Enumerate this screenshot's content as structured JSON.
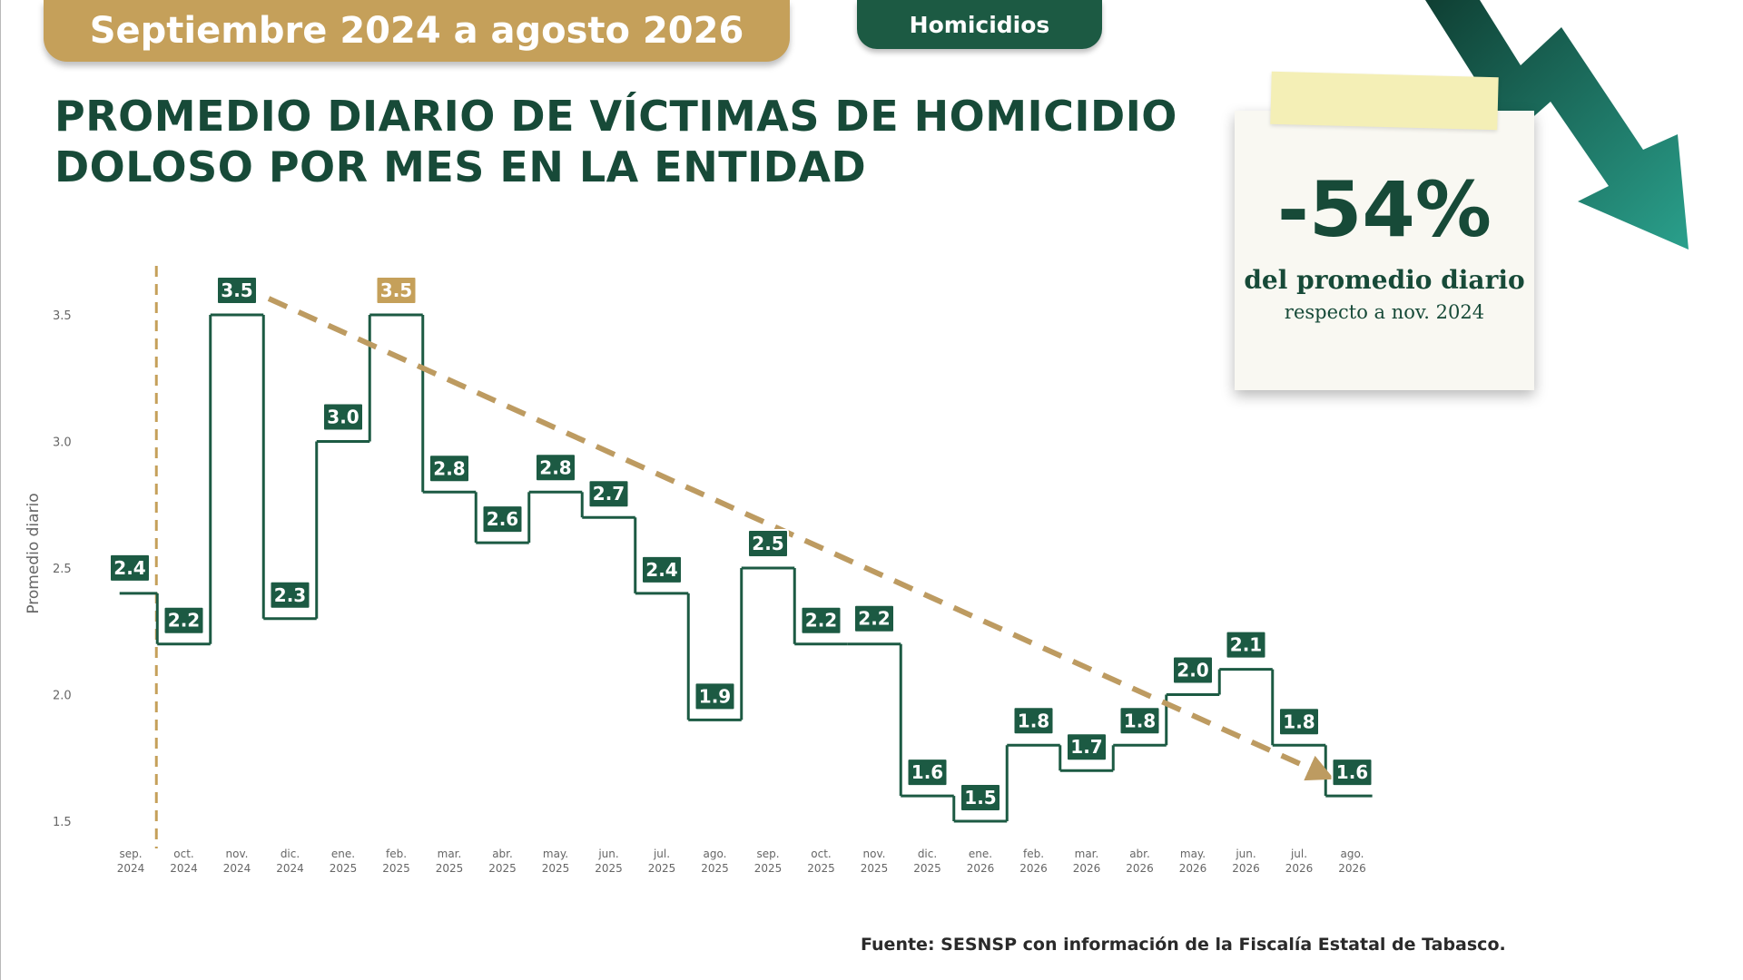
{
  "header": {
    "period": "Septiembre 2024 a agosto 2026",
    "section": "Homicidios"
  },
  "title": {
    "line1": "PROMEDIO DIARIO DE VÍCTIMAS DE HOMICIDIO",
    "line2": "DOLOSO POR MES EN LA ENTIDAD"
  },
  "note": {
    "big": "-54%",
    "line1": "del promedio diario",
    "line2": "respecto a nov. 2024"
  },
  "source": "Fuente: SESNSP con información de la Fiscalía Estatal de Tabasco.",
  "colors": {
    "line": "#1c5a43",
    "label_bg": "#1c5a43",
    "highlight": "#c5a05a",
    "trend": "#bd9b61",
    "axis_text": "#666666"
  },
  "chart_data": {
    "type": "line",
    "step": true,
    "ylabel": "Promedio diario",
    "xlabel": "",
    "ylim": [
      1.5,
      3.5
    ],
    "yticks": [
      "1.5",
      "2.0",
      "2.5",
      "3.0",
      "3.5"
    ],
    "categories": [
      [
        "sep.",
        "2024"
      ],
      [
        "oct.",
        "2024"
      ],
      [
        "nov.",
        "2024"
      ],
      [
        "dic.",
        "2024"
      ],
      [
        "ene.",
        "2025"
      ],
      [
        "feb.",
        "2025"
      ],
      [
        "mar.",
        "2025"
      ],
      [
        "abr.",
        "2025"
      ],
      [
        "may.",
        "2025"
      ],
      [
        "jun.",
        "2025"
      ],
      [
        "jul.",
        "2025"
      ],
      [
        "ago.",
        "2025"
      ],
      [
        "sep.",
        "2025"
      ],
      [
        "oct.",
        "2025"
      ],
      [
        "nov.",
        "2025"
      ],
      [
        "dic.",
        "2025"
      ],
      [
        "ene.",
        "2026"
      ],
      [
        "feb.",
        "2026"
      ],
      [
        "mar.",
        "2026"
      ],
      [
        "abr.",
        "2026"
      ],
      [
        "may.",
        "2026"
      ],
      [
        "jun.",
        "2026"
      ],
      [
        "jul.",
        "2026"
      ],
      [
        "ago.",
        "2026"
      ]
    ],
    "values": [
      2.4,
      2.2,
      3.5,
      2.3,
      3.0,
      3.5,
      2.8,
      2.6,
      2.8,
      2.7,
      2.4,
      1.9,
      2.5,
      2.2,
      2.2,
      1.6,
      1.5,
      1.8,
      1.7,
      1.8,
      2.0,
      2.1,
      1.8,
      1.6
    ],
    "labels": [
      "2.4",
      "2.2",
      "3.5",
      "2.3",
      "3.0",
      "3.5",
      "2.8",
      "2.6",
      "2.8",
      "2.7",
      "2.4",
      "1.9",
      "2.5",
      "2.2",
      "2.2",
      "1.6",
      "1.5",
      "1.8",
      "1.7",
      "1.8",
      "2.0",
      "2.1",
      "1.8",
      "1.6"
    ],
    "highlight_index": 5,
    "trend": {
      "from_index": 2,
      "to_index": 23,
      "style": "dashed-arrow"
    },
    "vertical_marker": {
      "between_index": [
        0,
        1
      ],
      "style": "dashed"
    },
    "grid": false,
    "legend": "none"
  }
}
